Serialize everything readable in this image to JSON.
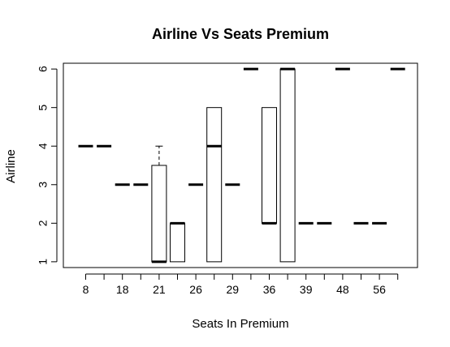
{
  "chart_data": {
    "type": "boxplot",
    "title": "Airline Vs Seats Premium",
    "xlabel": "Seats In Premium",
    "ylabel": "Airline",
    "ylim": [
      0.85,
      6.15
    ],
    "y_ticks": [
      1,
      2,
      3,
      4,
      5,
      6
    ],
    "groups": [
      "8",
      "12",
      "18",
      "20",
      "21",
      "24",
      "26",
      "28",
      "29",
      "34",
      "36",
      "38",
      "39",
      "42",
      "48",
      "52",
      "56",
      "60"
    ],
    "x_tick_labels_shown": [
      "8",
      "18",
      "21",
      "26",
      "29",
      "36",
      "39",
      "48",
      "56"
    ],
    "boxes": [
      {
        "group": "8",
        "min": 4,
        "q1": 4,
        "median": 4,
        "q3": 4,
        "max": 4
      },
      {
        "group": "12",
        "min": 4,
        "q1": 4,
        "median": 4,
        "q3": 4,
        "max": 4
      },
      {
        "group": "18",
        "min": 3,
        "q1": 3,
        "median": 3,
        "q3": 3,
        "max": 3
      },
      {
        "group": "20",
        "min": 3,
        "q1": 3,
        "median": 3,
        "q3": 3,
        "max": 3
      },
      {
        "group": "21",
        "min": 1,
        "q1": 1,
        "median": 1,
        "q3": 3.5,
        "max": 4
      },
      {
        "group": "24",
        "min": 1,
        "q1": 1,
        "median": 2,
        "q3": 2,
        "max": 2
      },
      {
        "group": "26",
        "min": 3,
        "q1": 3,
        "median": 3,
        "q3": 3,
        "max": 3
      },
      {
        "group": "28",
        "min": 1,
        "q1": 1,
        "median": 4,
        "q3": 5,
        "max": 5
      },
      {
        "group": "29",
        "min": 3,
        "q1": 3,
        "median": 3,
        "q3": 3,
        "max": 3
      },
      {
        "group": "34",
        "min": 6,
        "q1": 6,
        "median": 6,
        "q3": 6,
        "max": 6
      },
      {
        "group": "36",
        "min": 2,
        "q1": 2,
        "median": 2,
        "q3": 5,
        "max": 5
      },
      {
        "group": "38",
        "min": 1,
        "q1": 1,
        "median": 6,
        "q3": 6,
        "max": 6
      },
      {
        "group": "39",
        "min": 2,
        "q1": 2,
        "median": 2,
        "q3": 2,
        "max": 2
      },
      {
        "group": "42",
        "min": 2,
        "q1": 2,
        "median": 2,
        "q3": 2,
        "max": 2
      },
      {
        "group": "48",
        "min": 6,
        "q1": 6,
        "median": 6,
        "q3": 6,
        "max": 6
      },
      {
        "group": "52",
        "min": 2,
        "q1": 2,
        "median": 2,
        "q3": 2,
        "max": 2
      },
      {
        "group": "56",
        "min": 2,
        "q1": 2,
        "median": 2,
        "q3": 2,
        "max": 2
      },
      {
        "group": "60",
        "min": 6,
        "q1": 6,
        "median": 6,
        "q3": 6,
        "max": 6
      }
    ]
  }
}
